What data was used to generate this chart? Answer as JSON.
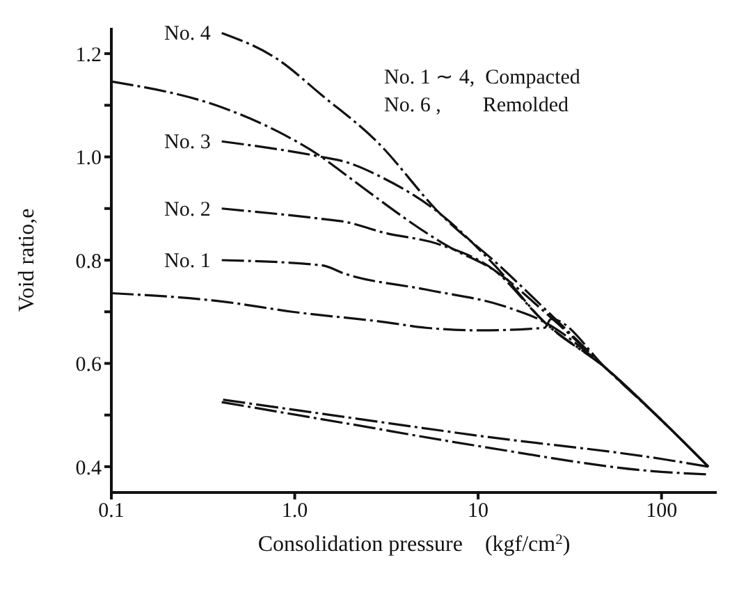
{
  "chart_data": {
    "type": "line",
    "xlabel": "Consolidation pressure　(kgf/cm$^{2}$)",
    "ylabel": "Void ratio,e",
    "annotations": [
      "No. 1 ∼ 4,  Compacted",
      "No. 6 ,        Remolded"
    ],
    "log": "x",
    "xlim": [
      0.1,
      200
    ],
    "xticks": [
      {
        "value": 0.1,
        "label": "0.1"
      },
      {
        "value": 1,
        "label": "1.0"
      },
      10,
      100
    ],
    "ylim": [
      0.35,
      1.25
    ],
    "yticks": [
      0.4,
      {
        "value": 0.5,
        "label": null
      },
      0.6,
      {
        "value": 0.7,
        "label": null
      },
      0.8,
      {
        "value": 0.9,
        "label": null
      },
      {
        "value": 1.0,
        "label": "1.0"
      },
      {
        "value": 1.1,
        "label": null
      },
      1.2
    ],
    "line_style": "dashed",
    "series": [
      {
        "name": "No. 4",
        "color": "#111111",
        "x": [
          0.4,
          0.8,
          1.4,
          2.8,
          6.2,
          13,
          24,
          50,
          100,
          180
        ],
        "values": [
          1.24,
          1.19,
          1.12,
          1.03,
          0.89,
          0.79,
          0.7,
          0.59,
          0.49,
          0.4
        ]
      },
      {
        "name": "No. 3",
        "color": "#111111",
        "x": [
          0.4,
          1.4,
          1.9,
          3.0,
          6.2,
          12.3,
          23,
          50,
          100,
          180
        ],
        "values": [
          1.03,
          1.0,
          0.99,
          0.96,
          0.89,
          0.79,
          0.68,
          0.59,
          0.49,
          0.4
        ]
      },
      {
        "name": "No. 2",
        "color": "#111111",
        "x": [
          0.4,
          1.4,
          1.9,
          3.0,
          6.2,
          12.3,
          23,
          50,
          100,
          180
        ],
        "values": [
          0.9,
          0.88,
          0.874,
          0.854,
          0.83,
          0.78,
          0.68,
          0.59,
          0.49,
          0.4
        ]
      },
      {
        "name": "No. 1",
        "color": "#111111",
        "x": [
          0.4,
          1.4,
          1.9,
          5.2,
          13.8,
          23,
          50,
          100,
          180
        ],
        "values": [
          0.8,
          0.79,
          0.773,
          0.743,
          0.711,
          0.68,
          0.59,
          0.49,
          0.4
        ]
      },
      {
        "color": "#111111",
        "x": [
          0.1,
          0.4,
          0.8,
          1.4,
          1.9,
          7.0,
          12.3,
          23,
          50,
          100,
          180
        ],
        "values": [
          1.146,
          1.096,
          1.05,
          1.0,
          0.965,
          0.825,
          0.78,
          0.7,
          0.59,
          0.49,
          0.4
        ]
      },
      {
        "color": "#111111",
        "x": [
          0.1,
          0.4,
          0.97,
          3.1,
          5.2,
          10.4,
          23,
          25,
          50,
          100,
          180
        ],
        "values": [
          0.736,
          0.72,
          0.7,
          0.68,
          0.669,
          0.664,
          0.669,
          0.686,
          0.59,
          0.49,
          0.4
        ]
      },
      {
        "color": "#111111",
        "x": [
          180,
          100,
          10,
          1.9,
          0.4
        ],
        "values": [
          0.4,
          0.415,
          0.46,
          0.496,
          0.53
        ]
      },
      {
        "color": "#111111",
        "x": [
          0.4,
          1.9,
          10,
          100,
          180
        ],
        "values": [
          0.525,
          0.484,
          0.44,
          0.39,
          0.385
        ]
      }
    ]
  }
}
